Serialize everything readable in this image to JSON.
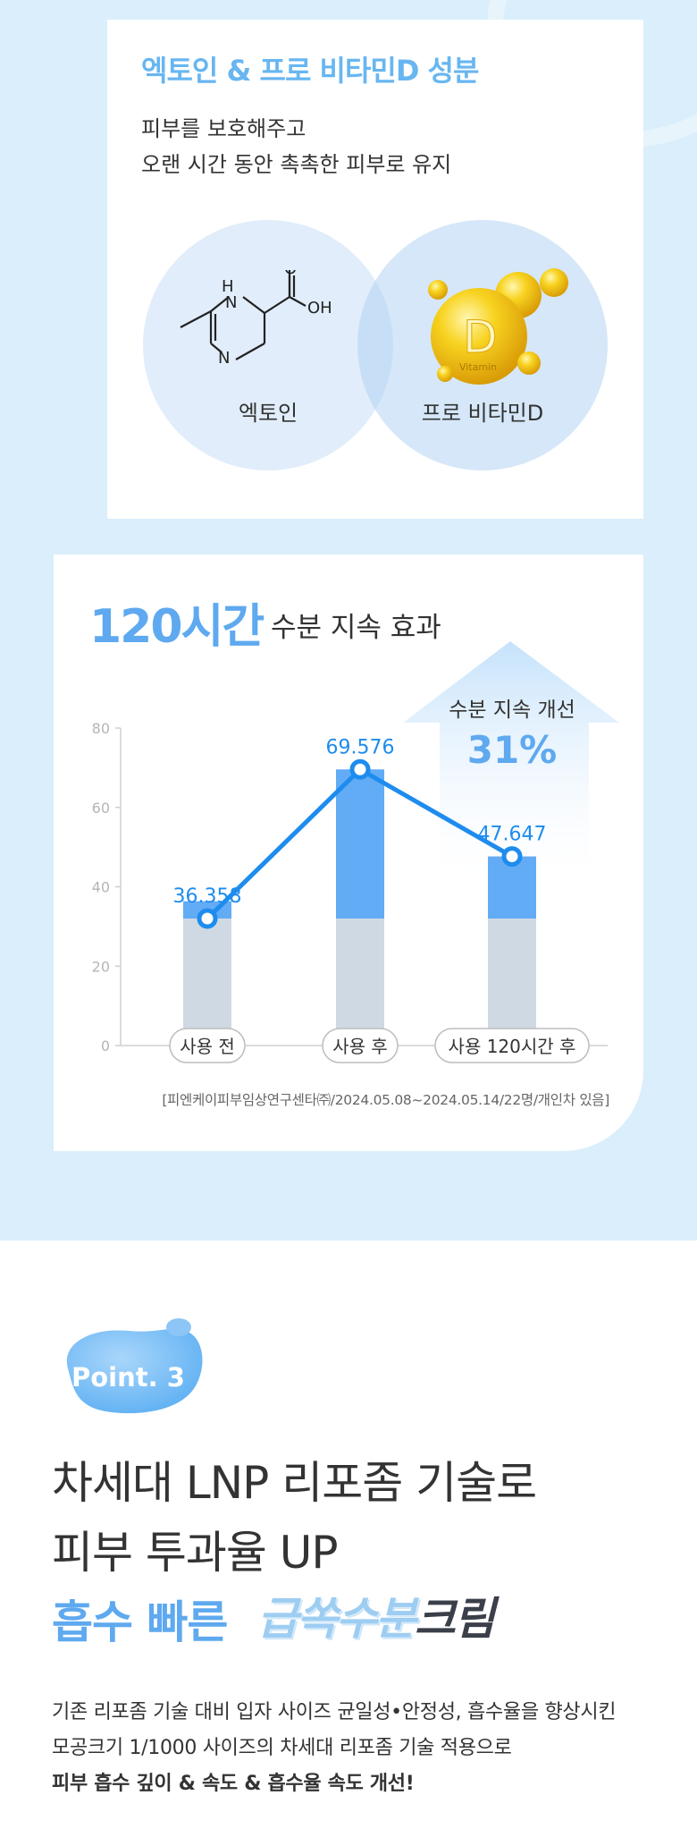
{
  "ingredients": {
    "title": "엑토인 & 프로 비타민D 성분",
    "desc_line1": "피부를 보호해주고",
    "desc_line2": "오랜 시간 동안 촉촉한 피부로 유지",
    "left_label": "엑토인",
    "right_label": "프로 비타민D",
    "molecule": {
      "nh": "H",
      "n": "N",
      "n2": "N",
      "o": "O",
      "oh": "OH"
    },
    "vitamin_letter": "D",
    "vitamin_word": "Vitamin"
  },
  "moisture": {
    "title_big": "120시간",
    "title_rest": "수분 지속 효과",
    "improve_label": "수분 지속 개선",
    "improve_value": "31%",
    "source": "[피엔케이피부임상연구센타㈜/2024.05.08~2024.05.14/22명/개인차 있음]"
  },
  "chart_data": {
    "type": "bar",
    "categories": [
      "사용 전",
      "사용 후",
      "사용 120시간 후"
    ],
    "series": [
      {
        "values": [
          36.358,
          69.576,
          47.647
        ]
      }
    ],
    "data_labels": [
      "36.358",
      "69.576",
      "47.647"
    ],
    "baseline_value": 32,
    "y_ticks": [
      "0",
      "20",
      "40",
      "60",
      "80"
    ],
    "ylim": [
      0,
      80
    ],
    "colors": {
      "base": "#cfd9e3",
      "increase": "#62acf5",
      "line": "#1e8cee"
    }
  },
  "point3": {
    "badge": "Point. 3",
    "headline1": "차세대 LNP 리포좀 기술로",
    "headline2": "피부 투과율 UP",
    "headline3": "흡수 빠른",
    "brand_part1": "급쏙수분",
    "brand_part2": "크림",
    "body1": "기존 리포좀 기술 대비 입자 사이즈 균일성•안정성, 흡수율을 향상시킨",
    "body2": "모공크기 1/1000 사이즈의 차세대 리포좀 기술 적용으로",
    "body3": "피부 흡수 깊이 & 속도 &  흡수율 속도 개선!"
  }
}
